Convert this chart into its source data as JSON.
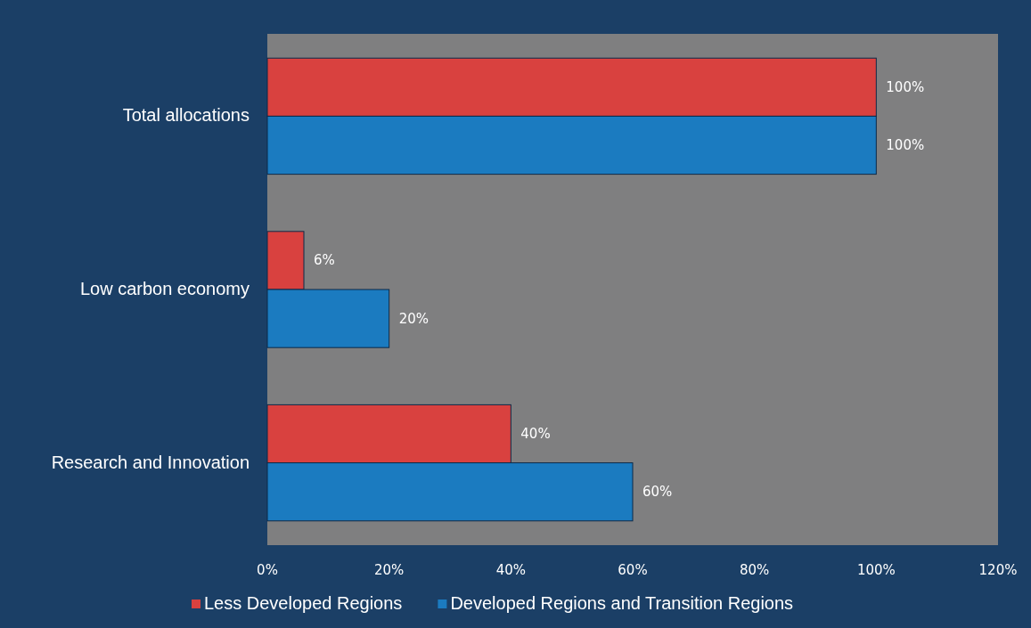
{
  "chart_data": {
    "type": "bar",
    "orientation": "horizontal",
    "categories": [
      "Total allocations",
      "Low carbon economy",
      "Research and Innovation"
    ],
    "series": [
      {
        "name": "Less Developed Regions",
        "color": "#d9413f",
        "values": [
          100,
          6,
          40
        ],
        "value_labels": [
          "100%",
          "6%",
          "40%"
        ]
      },
      {
        "name": "Developed Regions and Transition Regions",
        "color": "#1b7bc0",
        "values": [
          100,
          20,
          60
        ],
        "value_labels": [
          "100%",
          "20%",
          "60%"
        ]
      }
    ],
    "xlim": [
      0,
      120
    ],
    "xticks": [
      {
        "value": 0,
        "label": "0%"
      },
      {
        "value": 20,
        "label": "20%"
      },
      {
        "value": 40,
        "label": "40%"
      },
      {
        "value": 60,
        "label": "60%"
      },
      {
        "value": 80,
        "label": "80%"
      },
      {
        "value": 100,
        "label": "100%"
      },
      {
        "value": 120,
        "label": "120%"
      }
    ],
    "grid": false,
    "legend": "bottom"
  }
}
